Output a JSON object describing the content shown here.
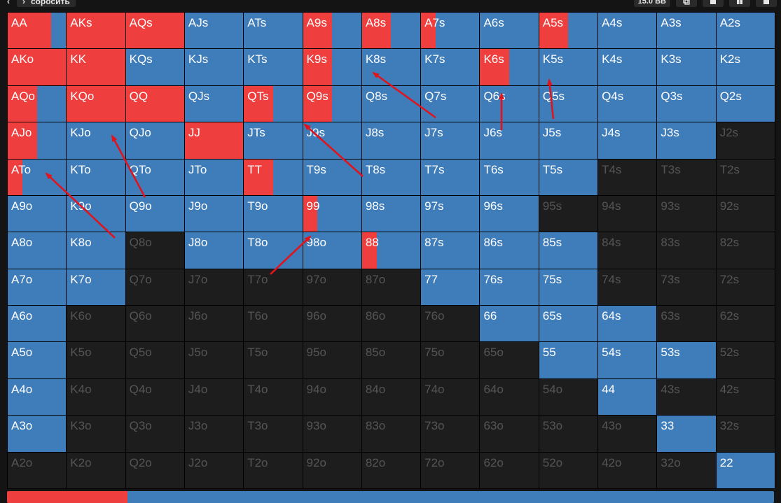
{
  "header": {
    "nav_back_glyph": "‹",
    "nav_forward_glyph": "›",
    "action_label": "сбросить",
    "stack_label": "15.0 BB",
    "icons": [
      "copy-icon",
      "save-icon",
      "layout-icon",
      "window-icon"
    ]
  },
  "colors": {
    "raise": "#ee3e3e",
    "call": "#3f7cba",
    "fold": "#1d1d1d",
    "fold_text": "#555555",
    "annotation_arrow": "#e0141c"
  },
  "matrix": {
    "rows": [
      [
        "AA",
        "AKs",
        "AQs",
        "AJs",
        "ATs",
        "A9s",
        "A8s",
        "A7s",
        "A6s",
        "A5s",
        "A4s",
        "A3s",
        "A2s"
      ],
      [
        "AKo",
        "KK",
        "KQs",
        "KJs",
        "KTs",
        "K9s",
        "K8s",
        "K7s",
        "K6s",
        "K5s",
        "K4s",
        "K3s",
        "K2s"
      ],
      [
        "AQo",
        "KQo",
        "QQ",
        "QJs",
        "QTs",
        "Q9s",
        "Q8s",
        "Q7s",
        "Q6s",
        "Q5s",
        "Q4s",
        "Q3s",
        "Q2s"
      ],
      [
        "AJo",
        "KJo",
        "QJo",
        "JJ",
        "JTs",
        "J9s",
        "J8s",
        "J7s",
        "J6s",
        "J5s",
        "J4s",
        "J3s",
        "J2s"
      ],
      [
        "ATo",
        "KTo",
        "QTo",
        "JTo",
        "TT",
        "T9s",
        "T8s",
        "T7s",
        "T6s",
        "T5s",
        "T4s",
        "T3s",
        "T2s"
      ],
      [
        "A9o",
        "K9o",
        "Q9o",
        "J9o",
        "T9o",
        "99",
        "98s",
        "97s",
        "96s",
        "95s",
        "94s",
        "93s",
        "92s"
      ],
      [
        "A8o",
        "K8o",
        "Q8o",
        "J8o",
        "T8o",
        "98o",
        "88",
        "87s",
        "86s",
        "85s",
        "84s",
        "83s",
        "82s"
      ],
      [
        "A7o",
        "K7o",
        "Q7o",
        "J7o",
        "T7o",
        "97o",
        "87o",
        "77",
        "76s",
        "75s",
        "74s",
        "73s",
        "72s"
      ],
      [
        "A6o",
        "K6o",
        "Q6o",
        "J6o",
        "T6o",
        "96o",
        "86o",
        "76o",
        "66",
        "65s",
        "64s",
        "63s",
        "62s"
      ],
      [
        "A5o",
        "K5o",
        "Q5o",
        "J5o",
        "T5o",
        "95o",
        "85o",
        "75o",
        "65o",
        "55",
        "54s",
        "53s",
        "52s"
      ],
      [
        "A4o",
        "K4o",
        "Q4o",
        "J4o",
        "T4o",
        "94o",
        "84o",
        "74o",
        "64o",
        "54o",
        "44",
        "43s",
        "42s"
      ],
      [
        "A3o",
        "K3o",
        "Q3o",
        "J3o",
        "T3o",
        "93o",
        "83o",
        "73o",
        "63o",
        "53o",
        "43o",
        "33",
        "32s"
      ],
      [
        "A2o",
        "K2o",
        "Q2o",
        "J2o",
        "T2o",
        "92o",
        "82o",
        "72o",
        "62o",
        "52o",
        "42o",
        "32o",
        "22"
      ]
    ],
    "raise_fraction": {
      "AA": 0.74,
      "AKs": 1.0,
      "AQs": 1.0,
      "A9s": 0.5,
      "A8s": 0.5,
      "A7s": 0.25,
      "A5s": 0.5,
      "AKo": 1.0,
      "KK": 1.0,
      "K9s": 0.5,
      "K6s": 0.5,
      "AQo": 0.5,
      "KQo": 1.0,
      "QQ": 1.0,
      "QTs": 0.5,
      "Q9s": 0.5,
      "AJo": 0.5,
      "JJ": 1.0,
      "ATo": 0.25,
      "TT": 0.5,
      "99": 0.25,
      "88": 0.25
    },
    "played": [
      "AA",
      "AKs",
      "AQs",
      "AJs",
      "ATs",
      "A9s",
      "A8s",
      "A7s",
      "A6s",
      "A5s",
      "A4s",
      "A3s",
      "A2s",
      "AKo",
      "KK",
      "KQs",
      "KJs",
      "KTs",
      "K9s",
      "K8s",
      "K7s",
      "K6s",
      "K5s",
      "K4s",
      "K3s",
      "K2s",
      "AQo",
      "KQo",
      "QQ",
      "QJs",
      "QTs",
      "Q9s",
      "Q8s",
      "Q7s",
      "Q6s",
      "Q5s",
      "Q4s",
      "Q3s",
      "Q2s",
      "AJo",
      "KJo",
      "QJo",
      "JJ",
      "JTs",
      "J9s",
      "J8s",
      "J7s",
      "J6s",
      "J5s",
      "J4s",
      "J3s",
      "ATo",
      "KTo",
      "QTo",
      "JTo",
      "TT",
      "T9s",
      "T8s",
      "T7s",
      "T6s",
      "T5s",
      "A9o",
      "K9o",
      "Q9o",
      "J9o",
      "T9o",
      "99",
      "98s",
      "97s",
      "96s",
      "A8o",
      "K8o",
      "J8o",
      "T8o",
      "98o",
      "88",
      "87s",
      "86s",
      "85s",
      "A7o",
      "K7o",
      "77",
      "76s",
      "75s",
      "A6o",
      "66",
      "65s",
      "64s",
      "A5o",
      "55",
      "54s",
      "53s",
      "A4o",
      "44",
      "A3o",
      "33",
      "22"
    ]
  },
  "summary_bar": {
    "raise_fraction": 0.157
  }
}
